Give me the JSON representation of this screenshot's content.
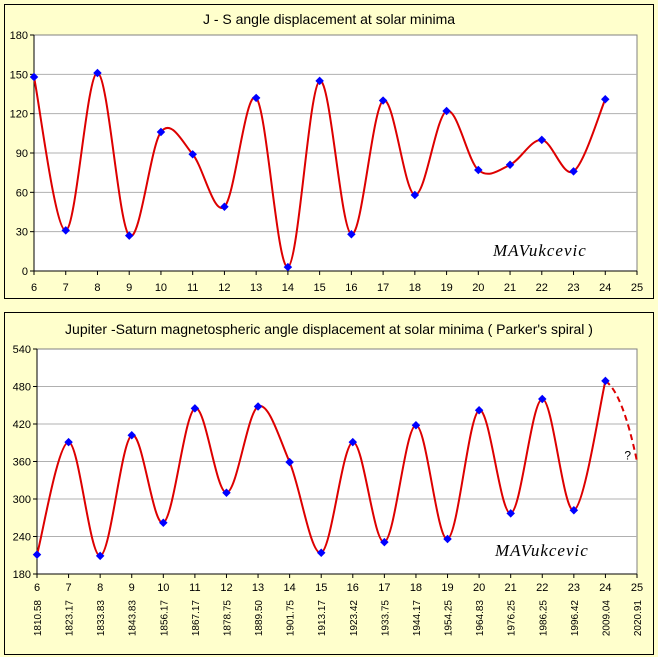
{
  "chart_data": [
    {
      "type": "line",
      "title": "J - S angle displacement at solar minima",
      "watermark": "MAVukcevic",
      "x_ticks": [
        "6",
        "7",
        "8",
        "9",
        "10",
        "11",
        "12",
        "13",
        "14",
        "15",
        "16",
        "17",
        "18",
        "19",
        "20",
        "21",
        "22",
        "23",
        "24",
        "25"
      ],
      "y_ticks": [
        "0",
        "30",
        "60",
        "90",
        "120",
        "150",
        "180"
      ],
      "ylim": [
        0,
        180
      ],
      "xlim": [
        6,
        25
      ],
      "grid": true,
      "line_color": "#dd0000",
      "marker_color": "#0000ff",
      "series": [
        {
          "x": [
            6,
            7,
            8,
            9,
            10,
            11,
            12,
            13,
            14,
            15,
            16,
            17,
            18,
            19,
            20,
            21,
            22,
            23,
            24
          ],
          "y": [
            148,
            31,
            151,
            27,
            106,
            89,
            49,
            132,
            3,
            145,
            28,
            130,
            58,
            122,
            77,
            81,
            100,
            76,
            131
          ]
        }
      ]
    },
    {
      "type": "line",
      "title": "Jupiter -Saturn magnetospheric angle displacement at solar minima  ( Parker's spiral )",
      "watermark": "MAVukcevic",
      "x_ticks": [
        "6",
        "7",
        "8",
        "9",
        "10",
        "11",
        "12",
        "13",
        "14",
        "15",
        "16",
        "17",
        "18",
        "19",
        "20",
        "21",
        "22",
        "23",
        "24",
        "25"
      ],
      "x_ticks_secondary": [
        "1810.58",
        "1823.17",
        "1833.83",
        "1843.83",
        "1856.17",
        "1867.17",
        "1878.75",
        "1889.50",
        "1901.75",
        "1913.17",
        "1923.42",
        "1933.75",
        "1944.17",
        "1954.25",
        "1964.83",
        "1976.25",
        "1986.25",
        "1996.42",
        "2009.04",
        "2020.91"
      ],
      "y_ticks": [
        "180",
        "240",
        "300",
        "360",
        "420",
        "480",
        "540"
      ],
      "ylim": [
        180,
        540
      ],
      "xlim": [
        6,
        25
      ],
      "grid": true,
      "line_color": "#dd0000",
      "marker_color": "#0000ff",
      "annotation": "?",
      "series": [
        {
          "x": [
            6,
            7,
            8,
            9,
            10,
            11,
            12,
            13,
            14,
            15,
            16,
            17,
            18,
            19,
            20,
            21,
            22,
            23,
            24
          ],
          "y": [
            211,
            391,
            209,
            402,
            262,
            445,
            310,
            448,
            359,
            214,
            391,
            231,
            418,
            236,
            442,
            277,
            460,
            282,
            489
          ]
        },
        {
          "style": "dashed",
          "x": [
            24,
            25
          ],
          "y": [
            489,
            360
          ]
        }
      ]
    }
  ]
}
